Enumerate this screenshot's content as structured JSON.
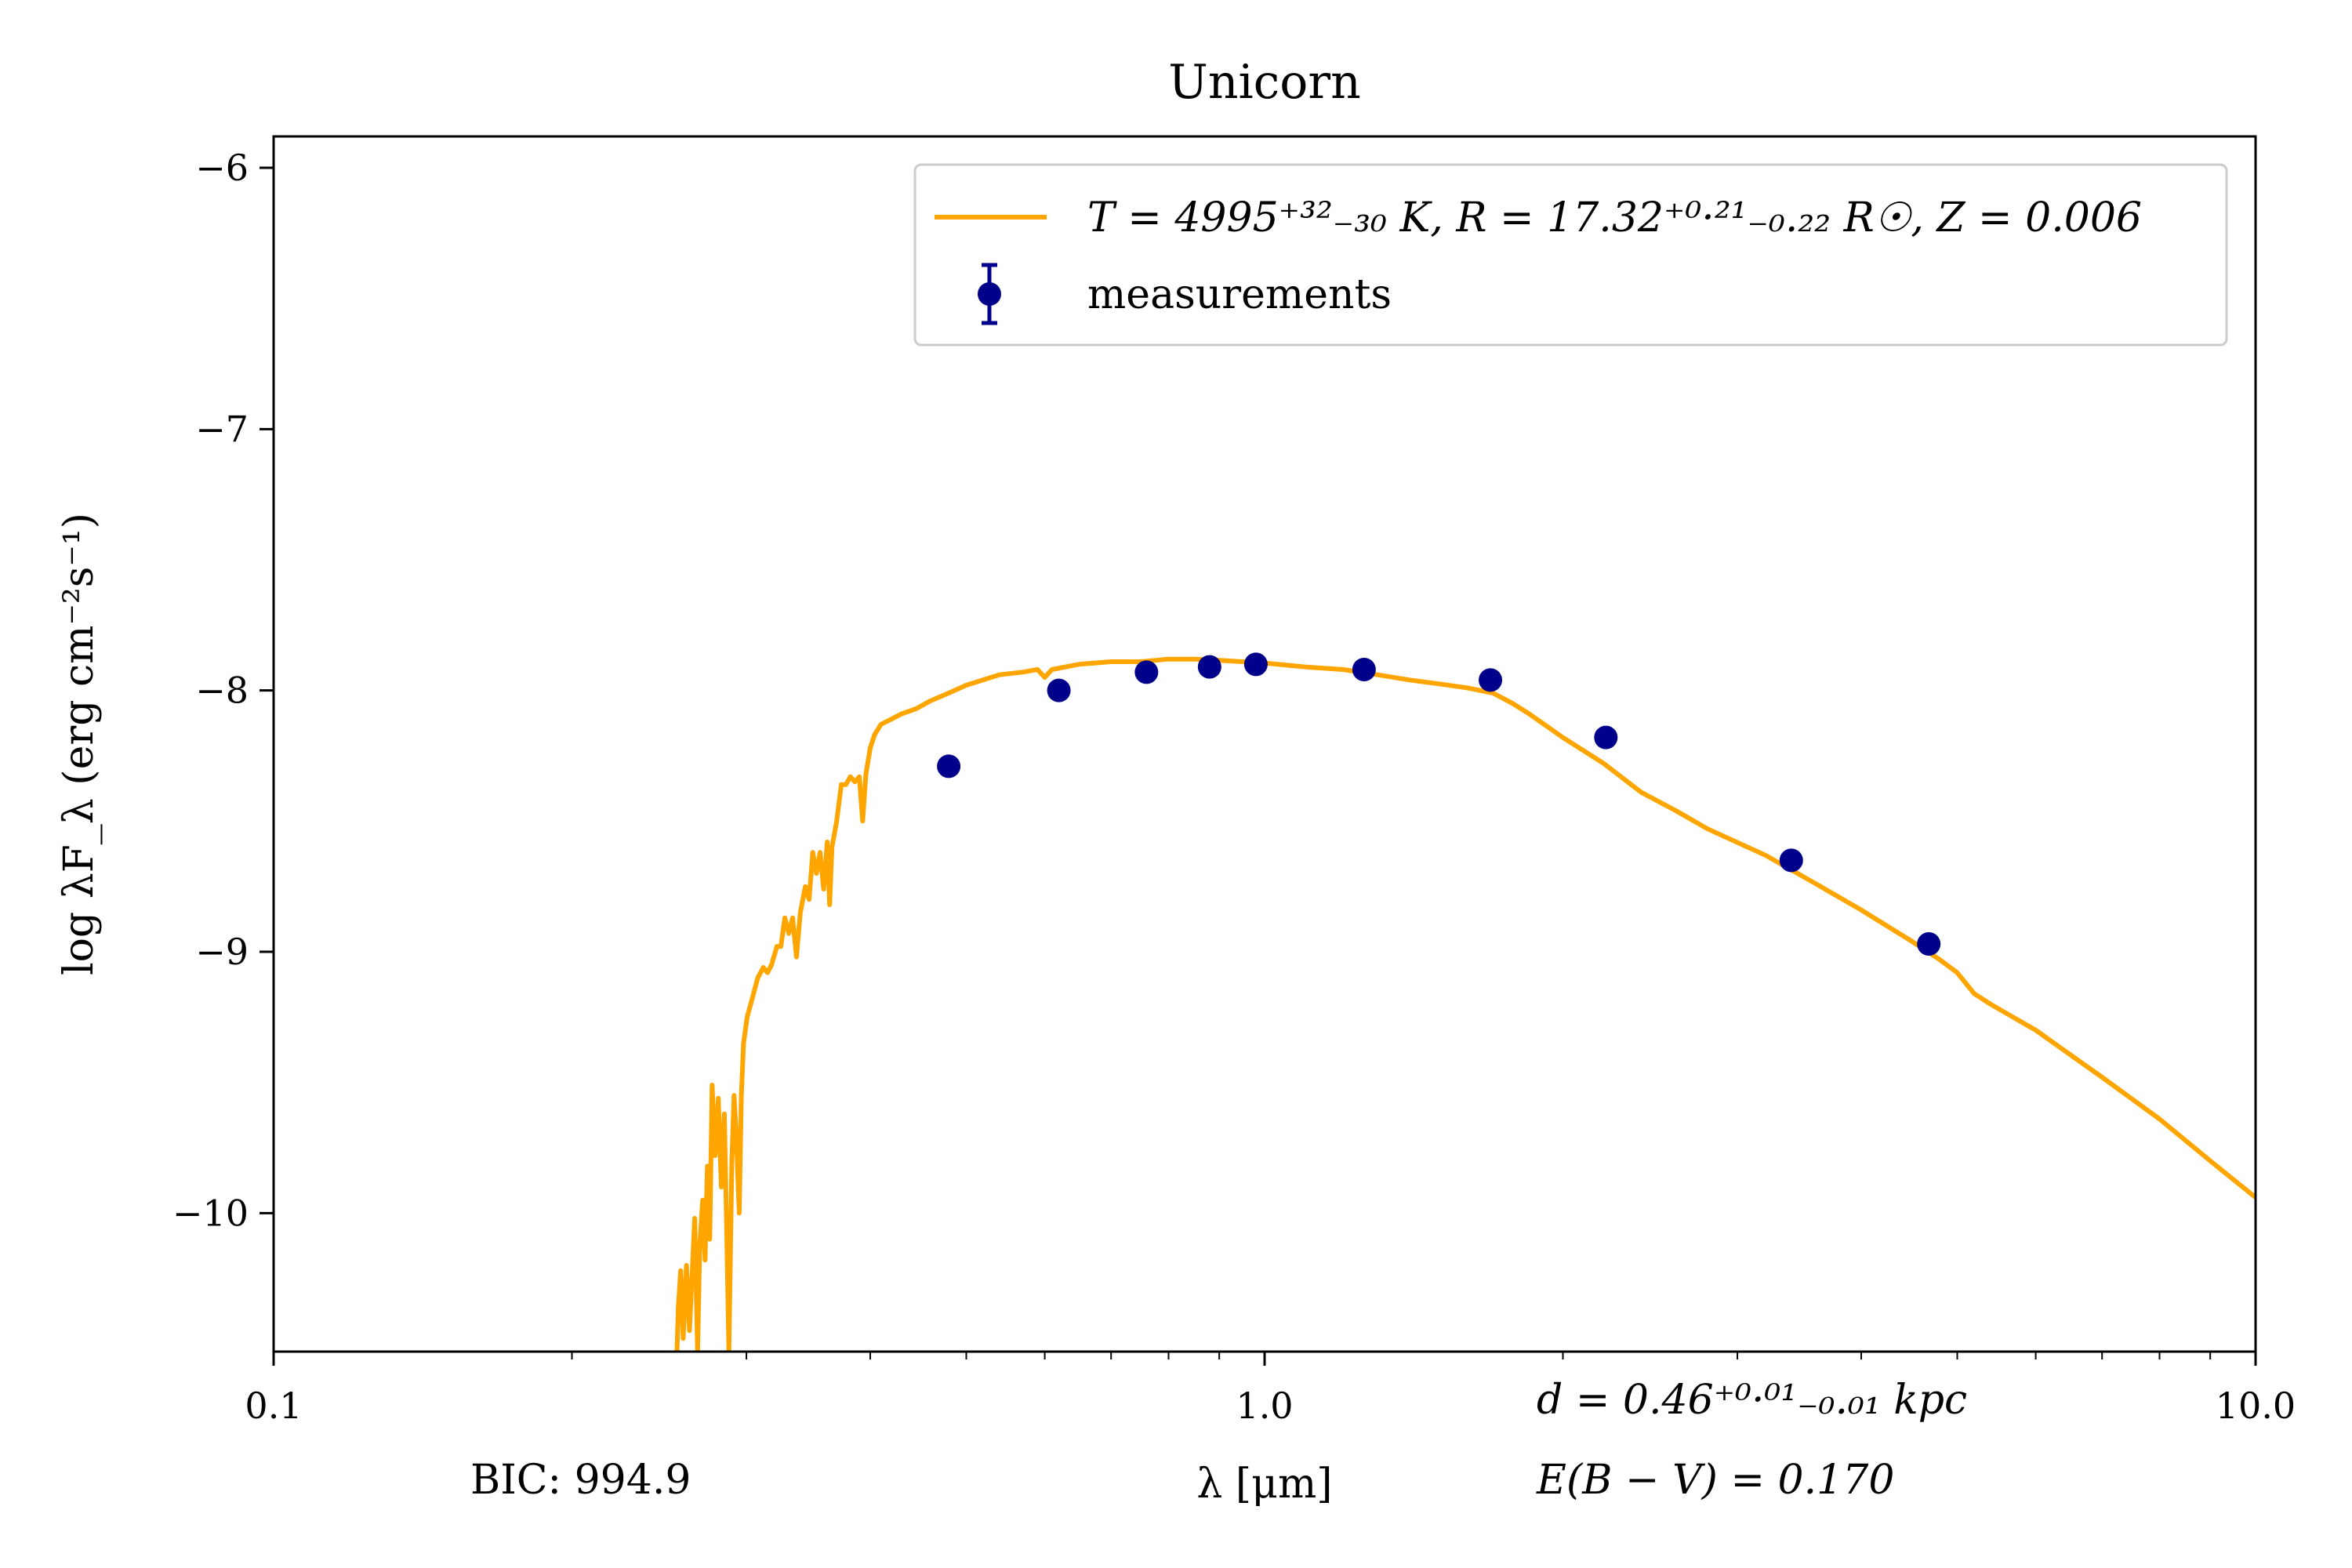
{
  "chart_data": {
    "type": "line",
    "title": "Unicorn",
    "xlabel": "λ [μm]",
    "ylabel": "log λF_λ (erg cm⁻²s⁻¹)",
    "x_scale": "log",
    "xlim": [
      0.1,
      10.0
    ],
    "ylim": [
      -10.53,
      -5.88
    ],
    "x_tick_labels": [
      "0.1",
      "1.0",
      "10.0"
    ],
    "y_tick_labels": [
      "−6",
      "−7",
      "−8",
      "−9",
      "−10"
    ],
    "y_tick_values": [
      -6,
      -7,
      -8,
      -9,
      -10
    ],
    "grid": false,
    "legend_position": "upper-right",
    "series": [
      {
        "name": "T = 4995⁺³²₋₃₀ K, R = 17.32⁺⁰·²¹₋₀.₂₂ R☉, Z = 0.006",
        "kind": "model",
        "color": "#ffa500",
        "points": [
          [
            0.2553,
            -10.53
          ],
          [
            0.2561,
            -10.36
          ],
          [
            0.2575,
            -10.22
          ],
          [
            0.259,
            -10.48
          ],
          [
            0.261,
            -10.2
          ],
          [
            0.2628,
            -10.45
          ],
          [
            0.2645,
            -10.23
          ],
          [
            0.266,
            -10.02
          ],
          [
            0.2678,
            -10.53
          ],
          [
            0.2692,
            -10.12
          ],
          [
            0.271,
            -9.95
          ],
          [
            0.2725,
            -10.18
          ],
          [
            0.274,
            -9.82
          ],
          [
            0.2755,
            -10.1
          ],
          [
            0.277,
            -9.51
          ],
          [
            0.279,
            -9.78
          ],
          [
            0.281,
            -9.56
          ],
          [
            0.283,
            -9.9
          ],
          [
            0.285,
            -9.62
          ],
          [
            0.2865,
            -10.05
          ],
          [
            0.288,
            -10.53
          ],
          [
            0.29,
            -9.8
          ],
          [
            0.2915,
            -9.55
          ],
          [
            0.293,
            -9.7
          ],
          [
            0.295,
            -10.0
          ],
          [
            0.2965,
            -9.55
          ],
          [
            0.298,
            -9.35
          ],
          [
            0.3005,
            -9.25
          ],
          [
            0.304,
            -9.18
          ],
          [
            0.308,
            -9.1
          ],
          [
            0.312,
            -9.06
          ],
          [
            0.315,
            -9.08
          ],
          [
            0.318,
            -9.05
          ],
          [
            0.322,
            -8.98
          ],
          [
            0.325,
            -8.98
          ],
          [
            0.328,
            -8.87
          ],
          [
            0.331,
            -8.93
          ],
          [
            0.334,
            -8.87
          ],
          [
            0.337,
            -9.02
          ],
          [
            0.34,
            -8.85
          ],
          [
            0.344,
            -8.75
          ],
          [
            0.347,
            -8.8
          ],
          [
            0.35,
            -8.62
          ],
          [
            0.353,
            -8.7
          ],
          [
            0.356,
            -8.62
          ],
          [
            0.359,
            -8.76
          ],
          [
            0.362,
            -8.58
          ],
          [
            0.364,
            -8.82
          ],
          [
            0.366,
            -8.6
          ],
          [
            0.37,
            -8.5
          ],
          [
            0.374,
            -8.36
          ],
          [
            0.378,
            -8.36
          ],
          [
            0.382,
            -8.33
          ],
          [
            0.386,
            -8.35
          ],
          [
            0.39,
            -8.33
          ],
          [
            0.393,
            -8.5
          ],
          [
            0.396,
            -8.32
          ],
          [
            0.4,
            -8.22
          ],
          [
            0.404,
            -8.17
          ],
          [
            0.41,
            -8.13
          ],
          [
            0.42,
            -8.11
          ],
          [
            0.43,
            -8.09
          ],
          [
            0.445,
            -8.07
          ],
          [
            0.46,
            -8.04
          ],
          [
            0.48,
            -8.01
          ],
          [
            0.5,
            -7.98
          ],
          [
            0.52,
            -7.96
          ],
          [
            0.54,
            -7.94
          ],
          [
            0.57,
            -7.93
          ],
          [
            0.59,
            -7.92
          ],
          [
            0.6,
            -7.95
          ],
          [
            0.61,
            -7.92
          ],
          [
            0.65,
            -7.9
          ],
          [
            0.7,
            -7.89
          ],
          [
            0.75,
            -7.89
          ],
          [
            0.8,
            -7.88
          ],
          [
            0.85,
            -7.88
          ],
          [
            0.9,
            -7.885
          ],
          [
            0.95,
            -7.89
          ],
          [
            1.0,
            -7.895
          ],
          [
            1.1,
            -7.91
          ],
          [
            1.2,
            -7.92
          ],
          [
            1.3,
            -7.94
          ],
          [
            1.4,
            -7.96
          ],
          [
            1.5,
            -7.975
          ],
          [
            1.6,
            -7.99
          ],
          [
            1.7,
            -8.01
          ],
          [
            1.78,
            -8.05
          ],
          [
            1.85,
            -8.09
          ],
          [
            2.0,
            -8.18
          ],
          [
            2.2,
            -8.28
          ],
          [
            2.4,
            -8.39
          ],
          [
            2.6,
            -8.46
          ],
          [
            2.8,
            -8.53
          ],
          [
            3.2,
            -8.63
          ],
          [
            3.6,
            -8.74
          ],
          [
            4.0,
            -8.84
          ],
          [
            4.5,
            -8.96
          ],
          [
            4.8,
            -9.03
          ],
          [
            5.0,
            -9.08
          ],
          [
            5.2,
            -9.16
          ],
          [
            5.4,
            -9.2
          ],
          [
            6.0,
            -9.3
          ],
          [
            7.0,
            -9.48
          ],
          [
            8.0,
            -9.64
          ],
          [
            9.0,
            -9.8
          ],
          [
            10.0,
            -9.94
          ]
        ]
      },
      {
        "name": "measurements",
        "kind": "points",
        "color": "#00008b",
        "x": [
          0.48,
          0.62,
          0.76,
          0.88,
          0.98,
          1.26,
          1.69,
          2.21,
          3.4,
          4.68
        ],
        "y": [
          -8.29,
          -8.0,
          -7.93,
          -7.91,
          -7.9,
          -7.92,
          -7.96,
          -8.18,
          -8.65,
          -8.97
        ]
      }
    ],
    "annotations": {
      "bic": "BIC: 994.9",
      "distance": "d = 0.46⁺⁰·⁰¹₋₀.₀₁ kpc",
      "reddening": "E(B − V) = 0.170"
    }
  }
}
